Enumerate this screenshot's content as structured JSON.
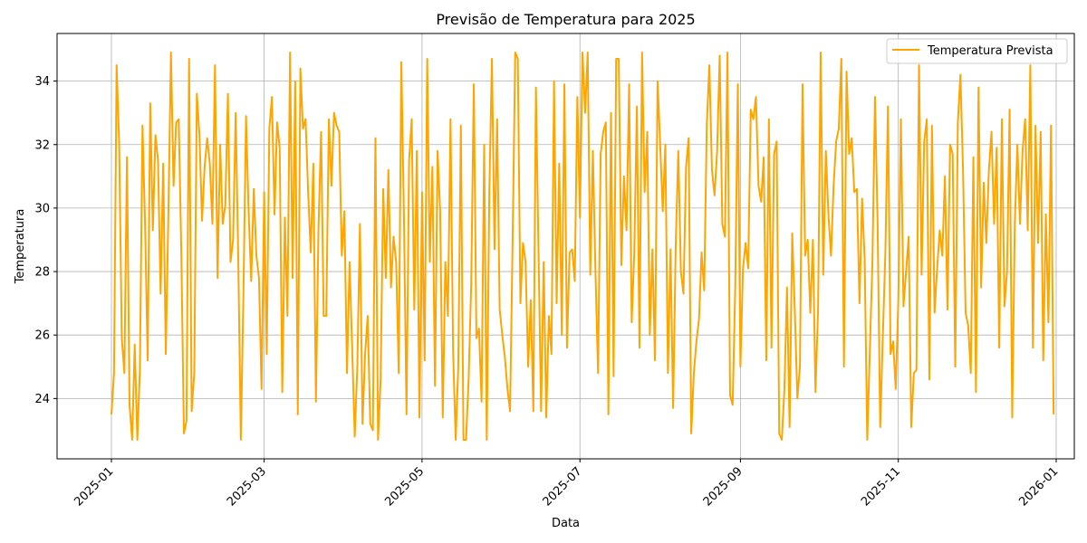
{
  "chart_data": {
    "type": "line",
    "title": "Previsão de Temperatura para 2025",
    "xlabel": "Data",
    "ylabel": "Temperatura",
    "grid": true,
    "legend_position": "top-right",
    "xlim": [
      "2024-12-11",
      "2026-01-08"
    ],
    "ylim": [
      22.1,
      35.5
    ],
    "x_ticks": [
      {
        "date": "2025-01-01",
        "label": "2025-01"
      },
      {
        "date": "2025-03-01",
        "label": "2025-03"
      },
      {
        "date": "2025-05-01",
        "label": "2025-05"
      },
      {
        "date": "2025-07-01",
        "label": "2025-07"
      },
      {
        "date": "2025-09-01",
        "label": "2025-09"
      },
      {
        "date": "2025-11-01",
        "label": "2025-11"
      },
      {
        "date": "2026-01-01",
        "label": "2026-01"
      }
    ],
    "y_ticks": [
      24,
      26,
      28,
      30,
      32,
      34
    ],
    "series": [
      {
        "name": "Temperatura Prevista",
        "color": "#ffa500",
        "start_date": "2025-01-01",
        "step": "1 day",
        "values": [
          23.5,
          24.8,
          34.5,
          32.0,
          25.9,
          24.8,
          31.6,
          23.8,
          22.7,
          25.7,
          22.7,
          24.9,
          32.6,
          29.5,
          25.2,
          33.3,
          29.3,
          32.3,
          31.5,
          27.3,
          31.4,
          25.4,
          29.8,
          34.9,
          30.7,
          32.7,
          32.8,
          28.6,
          22.9,
          23.3,
          34.7,
          23.6,
          24.8,
          33.6,
          32.3,
          29.6,
          31.3,
          32.2,
          31.4,
          29.5,
          34.5,
          27.8,
          32.0,
          29.5,
          30.1,
          33.6,
          28.3,
          29.0,
          33.0,
          28.4,
          22.7,
          27.3,
          32.9,
          29.9,
          27.7,
          30.6,
          28.5,
          27.8,
          24.3,
          30.5,
          25.4,
          32.5,
          33.5,
          29.8,
          32.7,
          31.9,
          24.2,
          29.7,
          26.6,
          34.9,
          27.8,
          34.0,
          23.5,
          34.4,
          32.5,
          32.8,
          30.5,
          28.6,
          31.4,
          23.9,
          29.4,
          32.4,
          26.6,
          26.6,
          32.8,
          30.7,
          33.0,
          32.6,
          32.4,
          28.5,
          29.9,
          24.8,
          28.3,
          25.6,
          22.8,
          25.0,
          29.5,
          23.2,
          25.4,
          26.6,
          23.2,
          23.0,
          32.2,
          22.7,
          24.6,
          30.6,
          27.8,
          31.2,
          27.5,
          29.1,
          28.3,
          24.8,
          34.6,
          29.8,
          23.5,
          31.5,
          32.8,
          26.8,
          31.8,
          23.4,
          30.5,
          25.2,
          34.7,
          28.3,
          31.3,
          24.4,
          31.8,
          29.9,
          23.4,
          28.3,
          26.6,
          32.8,
          25.5,
          22.7,
          25.0,
          32.6,
          22.7,
          22.7,
          24.6,
          27.6,
          33.9,
          25.9,
          26.2,
          23.9,
          32.0,
          22.7,
          30.5,
          34.7,
          28.7,
          32.8,
          26.8,
          26.0,
          25.3,
          24.3,
          23.6,
          29.0,
          34.9,
          34.7,
          27.0,
          28.9,
          28.3,
          25.0,
          27.1,
          23.6,
          33.8,
          28.6,
          23.6,
          28.3,
          23.4,
          26.6,
          25.4,
          34.0,
          27.0,
          31.4,
          26.0,
          33.9,
          25.6,
          28.6,
          28.7,
          27.7,
          33.5,
          29.7,
          34.9,
          33.0,
          34.9,
          27.9,
          31.8,
          28.0,
          24.8,
          31.7,
          32.4,
          32.7,
          23.5,
          33.0,
          24.7,
          34.7,
          34.7,
          28.2,
          31.0,
          29.3,
          33.9,
          26.4,
          28.6,
          33.2,
          25.6,
          34.9,
          30.5,
          32.4,
          26.0,
          28.7,
          25.2,
          34.0,
          32.0,
          29.9,
          32.0,
          24.8,
          28.7,
          23.7,
          28.8,
          31.8,
          28.0,
          27.3,
          31.3,
          32.2,
          22.9,
          24.8,
          25.8,
          26.5,
          28.6,
          27.4,
          32.6,
          34.5,
          31.2,
          30.4,
          31.8,
          34.8,
          29.5,
          29.1,
          34.9,
          24.1,
          23.8,
          27.5,
          33.9,
          25.0,
          28.1,
          28.9,
          28.1,
          33.1,
          32.8,
          33.5,
          30.7,
          30.2,
          31.6,
          25.2,
          32.8,
          25.6,
          31.7,
          32.1,
          22.9,
          22.7,
          24.3,
          27.5,
          23.1,
          29.2,
          26.8,
          24.0,
          25.0,
          33.9,
          28.5,
          29.0,
          26.7,
          29.0,
          24.2,
          26.8,
          34.9,
          27.9,
          31.8,
          29.8,
          28.5,
          30.7,
          32.1,
          32.5,
          34.7,
          25.0,
          34.3,
          31.7,
          32.2,
          30.5,
          30.6,
          27.0,
          30.3,
          28.4,
          22.7,
          25.5,
          28.3,
          33.5,
          29.5,
          23.1,
          25.9,
          28.6,
          33.2,
          25.4,
          25.8,
          24.3,
          27.1,
          32.8,
          26.9,
          28.0,
          29.1,
          23.1,
          24.8,
          24.9,
          34.5,
          27.9,
          32.1,
          32.8,
          24.6,
          32.6,
          26.7,
          28.1,
          29.3,
          28.5,
          31.0,
          26.8,
          32.0,
          31.7,
          25.0,
          32.7,
          34.2,
          31.2,
          26.7,
          26.3,
          24.8,
          31.6,
          24.2,
          33.8,
          27.5,
          30.8,
          28.9,
          31.2,
          32.4,
          29.5,
          31.9,
          25.6,
          32.8,
          26.9,
          28.0,
          33.1,
          23.4,
          29.5,
          32.0,
          29.5,
          31.8,
          32.8,
          29.3,
          34.5,
          25.6,
          32.6,
          28.9,
          32.4,
          25.2,
          29.8,
          26.4,
          32.6,
          23.5
        ]
      }
    ]
  }
}
